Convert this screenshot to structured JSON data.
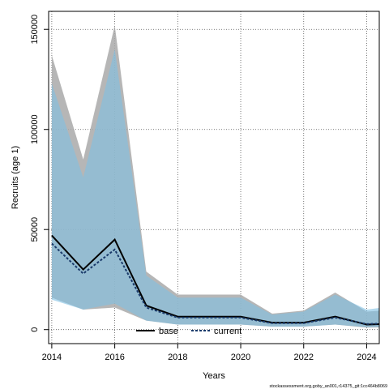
{
  "chart_data": {
    "type": "area",
    "title": "",
    "xlabel": "Years",
    "ylabel": "Recruits (age 1)",
    "xlim": [
      2013.9,
      2024.4
    ],
    "ylim": [
      -7000,
      159000
    ],
    "x_ticks": [
      2014,
      2016,
      2018,
      2020,
      2022,
      2024
    ],
    "y_ticks": [
      0,
      50000,
      100000,
      150000
    ],
    "grid": true,
    "legend_position": "bottom-center",
    "x": [
      2014,
      2015,
      2016,
      2017,
      2018,
      2019,
      2020,
      2021,
      2022,
      2023,
      2024,
      2025
    ],
    "series": [
      {
        "name": "base",
        "color": "#000000",
        "band_color": "#a9a9a9",
        "line_style": "solid",
        "values": [
          47000,
          30000,
          45000,
          12000,
          6500,
          6500,
          6500,
          3500,
          3500,
          6500,
          2500,
          3000
        ],
        "lower": [
          16000,
          10000,
          11000,
          4500,
          2500,
          2500,
          2500,
          1500,
          1500,
          2500,
          1000,
          1200
        ],
        "upper": [
          137000,
          85000,
          152000,
          29000,
          17500,
          17500,
          17500,
          8000,
          9500,
          18500,
          9000,
          10000
        ]
      },
      {
        "name": "current",
        "color": "#1a3a6a",
        "band_color": "#7fbfe3",
        "line_style": "dashed",
        "values": [
          43000,
          28000,
          40000,
          11000,
          6000,
          6000,
          6000,
          3200,
          3200,
          6000,
          2800,
          3300
        ],
        "lower": [
          15000,
          10000,
          13000,
          4500,
          2500,
          2500,
          2500,
          1500,
          1500,
          2500,
          1200,
          1500
        ],
        "upper": [
          123000,
          76000,
          140000,
          27000,
          16000,
          16000,
          16000,
          7500,
          9000,
          17500,
          10000,
          12000
        ]
      }
    ],
    "footer": "stockassessment.org,goby_an001,r14375_git:1cc464b8069"
  }
}
